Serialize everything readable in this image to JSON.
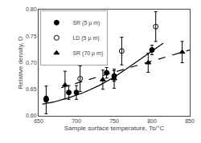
{
  "chart_data": {
    "type": "scatter",
    "title": "",
    "xlabel": "Sample surface temperature, Ts/°C",
    "ylabel": "Relative density, D",
    "xlim": [
      650,
      850
    ],
    "ylim": [
      0.6,
      0.8
    ],
    "xticks": [
      650,
      700,
      750,
      800,
      850
    ],
    "yticks": [
      {
        "value": 0.6,
        "label": "0.60"
      },
      0.65,
      {
        "value": 0.7,
        "label": "0.70"
      },
      0.75,
      {
        "value": 0.8,
        "label": "0.80"
      }
    ],
    "grid": false,
    "legend": "upper left",
    "series": [
      {
        "type": "line",
        "color": "black",
        "line_style": "solid",
        "x": [
          655,
          670,
          690,
          710,
          730,
          750,
          770,
          790,
          810,
          815
        ],
        "values": [
          0.622,
          0.626,
          0.634,
          0.644,
          0.657,
          0.673,
          0.692,
          0.712,
          0.731,
          0.737
        ]
      },
      {
        "type": "line",
        "color": "black",
        "line_style": "dashed",
        "x": [
          680,
          850
        ],
        "values": [
          0.653,
          0.724
        ]
      },
      {
        "name": "SR (5 μ m)",
        "type": "scatter",
        "color": "black",
        "marker": "circle",
        "x": [
          660,
          690,
          700,
          740,
          750,
          800
        ],
        "values": [
          0.632,
          0.644,
          0.644,
          0.681,
          0.675,
          0.724
        ],
        "yerr": [
          0.005,
          0.013,
          0.013,
          0.01,
          0.01,
          0.009
        ]
      },
      {
        "name": "LD (5 μ m)",
        "type": "scatter",
        "color": "black",
        "marker": "circle-open",
        "x": [
          660,
          705,
          760,
          805
        ],
        "values": [
          0.63,
          0.67,
          0.722,
          0.768
        ],
        "yerr": [
          0.026,
          0.024,
          0.026,
          0.028
        ]
      },
      {
        "name": "SR (70 μ m)",
        "type": "scatter",
        "color": "black",
        "marker": "triangle-up",
        "x": [
          685,
          735,
          750,
          795,
          840
        ],
        "values": [
          0.658,
          0.668,
          0.67,
          0.7,
          0.72
        ],
        "yerr": [
          0.026,
          0.018,
          0.018,
          0.018,
          0.02
        ]
      }
    ]
  }
}
